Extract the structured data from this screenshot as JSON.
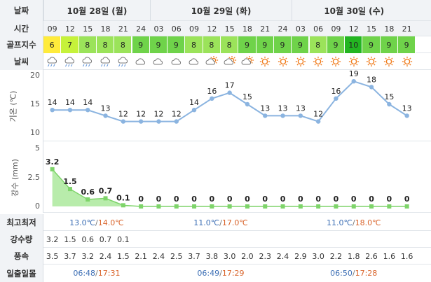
{
  "labels": {
    "date": "날짜",
    "time": "시간",
    "golf_index": "골프지수",
    "weather": "날씨",
    "temp_axis": "기온 (℃)",
    "rain_axis": "강수 (mm)",
    "minmax": "최고최저",
    "rainfall": "강수량",
    "wind": "풍속",
    "sun": "일출일몰"
  },
  "dates": [
    "10월 28일 (월)",
    "10월 29일 (화)",
    "10월 30일 (수)"
  ],
  "hours": [
    "09",
    "12",
    "15",
    "18",
    "21",
    "24",
    "03",
    "06",
    "09",
    "12",
    "15",
    "18",
    "21",
    "24",
    "03",
    "06",
    "09",
    "12",
    "15",
    "18",
    "21"
  ],
  "golf": [
    "6",
    "7",
    "8",
    "8",
    "8",
    "9",
    "9",
    "9",
    "8",
    "8",
    "8",
    "9",
    "9",
    "9",
    "9",
    "8",
    "9",
    "10",
    "9",
    "9",
    "9"
  ],
  "golf_colors": {
    "6": "#ffeb3b",
    "7": "#c6f23a",
    "8": "#9be35a",
    "9": "#6fd34a",
    "10": "#23b521"
  },
  "weather_icons": [
    "cloud-rain-icon",
    "cloud-rain-icon",
    "cloud-rain-icon",
    "cloud-rain-icon",
    "cloud-rain-icon",
    "cloud-icon",
    "cloud-icon",
    "cloud-icon",
    "cloud-icon",
    "sun-cloud-icon",
    "sun-cloud-icon",
    "sun-cloud-icon",
    "sun-icon",
    "sun-icon",
    "sun-icon",
    "sun-icon",
    "sun-icon",
    "sun-icon",
    "sun-icon",
    "sun-icon",
    "sun-icon"
  ],
  "chart_data": [
    {
      "type": "line",
      "ylabel": "기온 (℃)",
      "ylim": [
        10,
        20
      ],
      "yticks": [
        "20",
        "15",
        "10"
      ],
      "x": [
        "09",
        "12",
        "15",
        "18",
        "21",
        "24",
        "03",
        "06",
        "09",
        "12",
        "15",
        "18",
        "21",
        "24",
        "03",
        "06",
        "09",
        "12",
        "15",
        "18",
        "21"
      ],
      "values": [
        14,
        14,
        14,
        13,
        12,
        12,
        12,
        12,
        14,
        16,
        17,
        15,
        13,
        13,
        13,
        12,
        16,
        19,
        18,
        15,
        13
      ],
      "color": "#8bb4e0"
    },
    {
      "type": "area",
      "ylabel": "강수 (mm)",
      "ylim": [
        0,
        5
      ],
      "yticks": [
        "5",
        "2.5",
        "0"
      ],
      "x": [
        "09",
        "12",
        "15",
        "18",
        "21",
        "24",
        "03",
        "06",
        "09",
        "12",
        "15",
        "18",
        "21",
        "24",
        "03",
        "06",
        "09",
        "12",
        "15",
        "18",
        "21"
      ],
      "values": [
        3.2,
        1.5,
        0.6,
        0.7,
        0.1,
        0,
        0,
        0,
        0,
        0,
        0,
        0,
        0,
        0,
        0,
        0,
        0,
        0,
        0,
        0,
        0
      ],
      "color": "#7ed46a"
    }
  ],
  "minmax_days": [
    {
      "min": "13.0℃",
      "max": "14.0℃"
    },
    {
      "min": "11.0℃",
      "max": "17.0℃"
    },
    {
      "min": "11.0℃",
      "max": "18.0℃"
    }
  ],
  "minmax_sep": "/",
  "rainfall": [
    "3.2",
    "1.5",
    "0.6",
    "0.7",
    "0.1",
    "",
    "",
    "",
    "",
    "",
    "",
    "",
    "",
    "",
    "",
    "",
    "",
    "",
    "",
    "",
    ""
  ],
  "wind": [
    "3.5",
    "3.7",
    "3.2",
    "2.4",
    "1.5",
    "2.1",
    "2.4",
    "2.5",
    "3.7",
    "3.8",
    "3.0",
    "2.0",
    "2.3",
    "2.4",
    "2.9",
    "3.0",
    "2.2",
    "1.8",
    "2.6",
    "1.6",
    "1.6"
  ],
  "sun_days": [
    {
      "rise": "06:48",
      "set": "17:31"
    },
    {
      "rise": "06:49",
      "set": "17:29"
    },
    {
      "rise": "06:50",
      "set": "17:28"
    }
  ]
}
